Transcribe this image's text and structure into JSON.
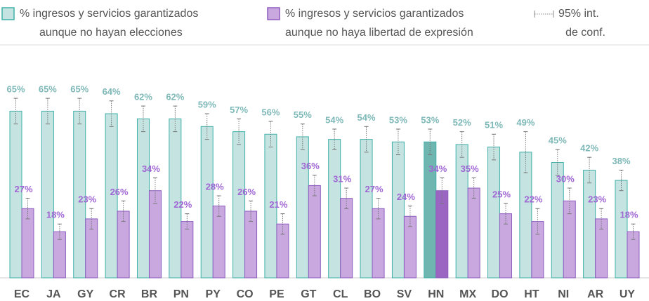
{
  "chart_data": {
    "type": "grouped_bar",
    "legend": [
      {
        "lines": [
          "% ingresos y servicios garantizados",
          "aunque no hayan elecciones"
        ]
      },
      {
        "lines": [
          "% ingresos y servicios garantizados",
          "aunque no haya libertad de expresión"
        ]
      },
      {
        "lines": [
          "95% int.",
          "de conf."
        ]
      }
    ],
    "categories": [
      "EC",
      "JA",
      "GY",
      "CR",
      "BR",
      "PN",
      "PY",
      "CO",
      "PE",
      "GT",
      "CL",
      "BO",
      "SV",
      "HN",
      "MX",
      "DO",
      "HT",
      "NI",
      "AR",
      "UY"
    ],
    "series": [
      {
        "color": "#c5e4e1",
        "stroke": "#3fb0a8",
        "highlight_color": "#6fb5b0",
        "label_color": "#7fb8b8",
        "values": [
          65,
          65,
          65,
          64,
          62,
          62,
          59,
          57,
          56,
          55,
          54,
          54,
          53,
          53,
          52,
          51,
          49,
          45,
          42,
          38
        ],
        "value_labels": [
          "65%",
          "65%",
          "65%",
          "64%",
          "62%",
          "62%",
          "59%",
          "57%",
          "56%",
          "55%",
          "54%",
          "54%",
          "53%",
          "53%",
          "52%",
          "51%",
          "49%",
          "45%",
          "42%",
          "38%"
        ],
        "errors": [
          5,
          5,
          5,
          5,
          5,
          5,
          5,
          5,
          5,
          5,
          4,
          5,
          5,
          5,
          5,
          5,
          8,
          5,
          5,
          4
        ]
      },
      {
        "color": "#c9a8e0",
        "stroke": "#8e5cbf",
        "highlight_color": "#9b66c2",
        "label_color": "#a066d4",
        "values": [
          27,
          18,
          23,
          26,
          34,
          22,
          28,
          26,
          21,
          36,
          31,
          27,
          24,
          34,
          35,
          25,
          22,
          30,
          23,
          18
        ],
        "value_labels": [
          "27%",
          "18%",
          "23%",
          "26%",
          "34%",
          "22%",
          "28%",
          "26%",
          "21%",
          "36%",
          "31%",
          "27%",
          "24%",
          "34%",
          "35%",
          "25%",
          "22%",
          "30%",
          "23%",
          "18%"
        ],
        "errors": [
          4,
          3,
          4,
          4,
          5,
          3,
          4,
          4,
          4,
          4,
          4,
          4,
          4,
          5,
          4,
          4,
          5,
          5,
          4,
          3
        ]
      }
    ],
    "highlight_index": 13,
    "ylim": [
      0,
      90
    ]
  }
}
